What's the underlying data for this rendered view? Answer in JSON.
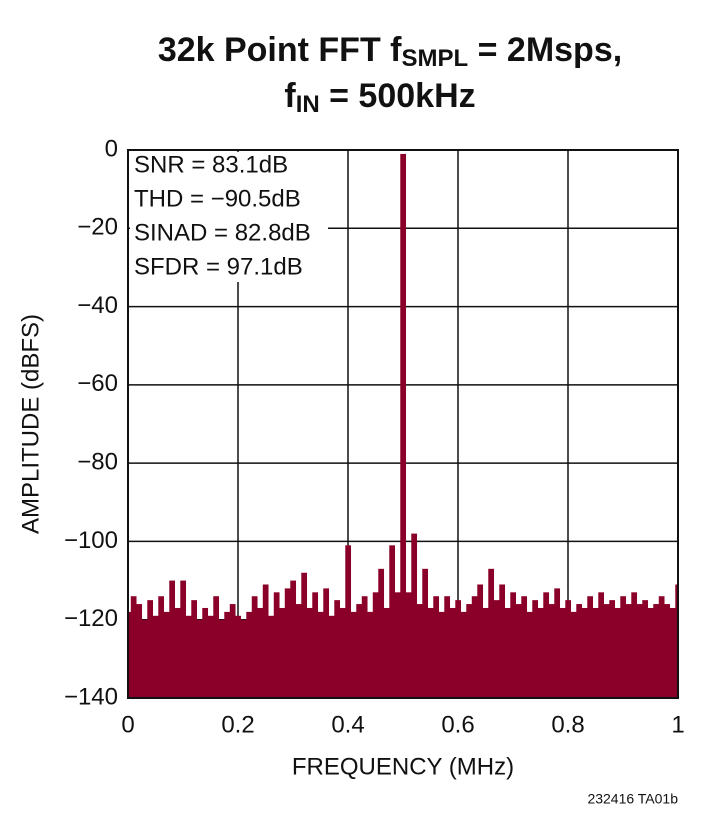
{
  "chart_data": {
    "type": "bar",
    "title": [
      "32k Point FFT f",
      "SMPL",
      " = 2Msps,",
      "f",
      "IN",
      " = 500kHz"
    ],
    "annotations": [
      "SNR = 83.1dB",
      "THD = −90.5dB",
      "SINAD = 82.8dB",
      "SFDR = 97.1dB"
    ],
    "x_label": "FREQUENCY (MHz)",
    "y_label": "AMPLITUDE (dBFS)",
    "footnote": "232416 TA01b",
    "color": "#8b0028",
    "grid": true,
    "xlim": [
      0,
      1
    ],
    "xticks": [
      0,
      0.2,
      0.4,
      0.6,
      0.8,
      1
    ],
    "ylim": [
      -140,
      0
    ],
    "yticks": [
      {
        "value": -140,
        "label": "−140"
      },
      {
        "value": -120,
        "label": "−120"
      },
      {
        "value": -100,
        "label": "−100"
      },
      {
        "value": -80,
        "label": "−80"
      },
      {
        "value": -60,
        "label": "−60"
      },
      {
        "value": -40,
        "label": "−40"
      },
      {
        "value": -20,
        "label": "−20"
      },
      0
    ],
    "x": [
      0,
      0.01,
      0.02,
      0.03,
      0.04,
      0.05,
      0.06,
      0.07,
      0.08,
      0.09,
      0.1,
      0.11,
      0.12,
      0.13,
      0.14,
      0.15,
      0.16,
      0.17,
      0.18,
      0.19,
      0.2,
      0.21,
      0.22,
      0.23,
      0.24,
      0.25,
      0.26,
      0.27,
      0.28,
      0.29,
      0.3,
      0.31,
      0.32,
      0.33,
      0.34,
      0.35,
      0.36,
      0.37,
      0.38,
      0.39,
      0.4,
      0.41,
      0.42,
      0.43,
      0.44,
      0.45,
      0.46,
      0.47,
      0.48,
      0.49,
      0.5,
      0.51,
      0.52,
      0.53,
      0.54,
      0.55,
      0.56,
      0.57,
      0.58,
      0.59,
      0.6,
      0.61,
      0.62,
      0.63,
      0.64,
      0.65,
      0.66,
      0.67,
      0.68,
      0.69,
      0.7,
      0.71,
      0.72,
      0.73,
      0.74,
      0.75,
      0.76,
      0.77,
      0.78,
      0.79,
      0.8,
      0.81,
      0.82,
      0.83,
      0.84,
      0.85,
      0.86,
      0.87,
      0.88,
      0.89,
      0.9,
      0.91,
      0.92,
      0.93,
      0.94,
      0.95,
      0.96,
      0.97,
      0.98,
      0.99,
      1
    ],
    "values": [
      -118,
      -114,
      -116,
      -120,
      -115,
      -119,
      -114,
      -118,
      -110,
      -117,
      -110,
      -119,
      -115,
      -120,
      -117,
      -119,
      -114,
      -120,
      -118,
      -116,
      -119,
      -120,
      -118,
      -114,
      -117,
      -111,
      -119,
      -113,
      -117,
      -112,
      -110,
      -116,
      -108,
      -117,
      -113,
      -118,
      -112,
      -119,
      -115,
      -117,
      -101,
      -118,
      -116,
      -114,
      -118,
      -113,
      -107,
      -117,
      -101,
      -113,
      -1,
      -113,
      -98,
      -116,
      -107,
      -117,
      -114,
      -118,
      -114,
      -117,
      -115,
      -118,
      -116,
      -114,
      -111,
      -117,
      -107,
      -115,
      -111,
      -117,
      -113,
      -116,
      -114,
      -118,
      -115,
      -117,
      -113,
      -116,
      -112,
      -117,
      -115,
      -118,
      -116,
      -117,
      -114,
      -117,
      -113,
      -116,
      -115,
      -117,
      -114,
      -116,
      -113,
      -116,
      -115,
      -117,
      -116,
      -114,
      -116,
      -117,
      -111
    ]
  }
}
